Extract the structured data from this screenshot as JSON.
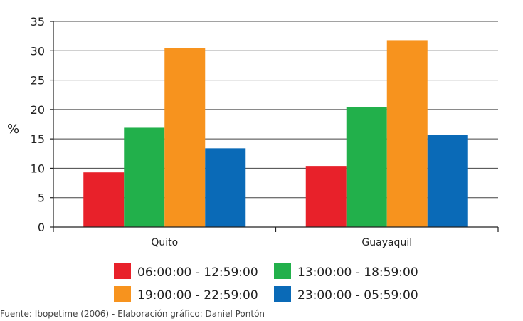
{
  "chart_data": {
    "type": "bar",
    "title": "",
    "xlabel": "",
    "ylabel": "%",
    "ylim": [
      0,
      35
    ],
    "yticks": [
      0,
      5,
      10,
      15,
      20,
      25,
      30,
      35
    ],
    "grid": true,
    "legend_position": "bottom",
    "categories": [
      "Quito",
      "Guayaquil"
    ],
    "series": [
      {
        "name": "06:00:00 - 12:59:00",
        "color": "#e8212a",
        "values": [
          9.3,
          10.4
        ]
      },
      {
        "name": "13:00:00 - 18:59:00",
        "color": "#22b04b",
        "values": [
          16.9,
          20.4
        ]
      },
      {
        "name": "19:00:00 - 22:59:00",
        "color": "#f7931e",
        "values": [
          30.5,
          31.8
        ]
      },
      {
        "name": "23:00:00 - 05:59:00",
        "color": "#0a6ab7",
        "values": [
          13.4,
          15.7
        ]
      }
    ]
  },
  "source_note": "Fuente: Ibopetime (2006) - Elaboración gráfico: Daniel Pontón"
}
